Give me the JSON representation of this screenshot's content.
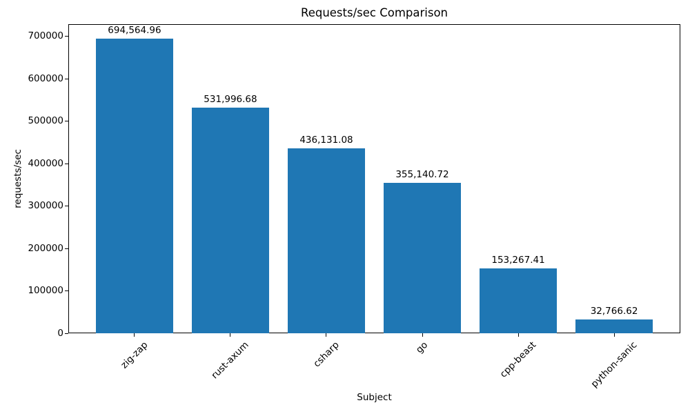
{
  "chart_data": {
    "type": "bar",
    "title": "Requests/sec Comparison",
    "xlabel": "Subject",
    "ylabel": "requests/sec",
    "categories": [
      "zig-zap",
      "rust-axum",
      "csharp",
      "go",
      "cpp-beast",
      "python-sanic"
    ],
    "values": [
      694564.96,
      531996.68,
      436131.08,
      355140.72,
      153267.41,
      32766.62
    ],
    "value_labels": [
      "694,564.96",
      "531,996.68",
      "436,131.08",
      "355,140.72",
      "153,267.41",
      "32,766.62"
    ],
    "yticks": [
      0,
      100000,
      200000,
      300000,
      400000,
      500000,
      600000,
      700000
    ],
    "ylim": [
      0,
      729293
    ],
    "grid": false,
    "legend_position": "none",
    "bar_color": "#1f77b4",
    "text_color": "#000000",
    "background_color": "#ffffff"
  }
}
